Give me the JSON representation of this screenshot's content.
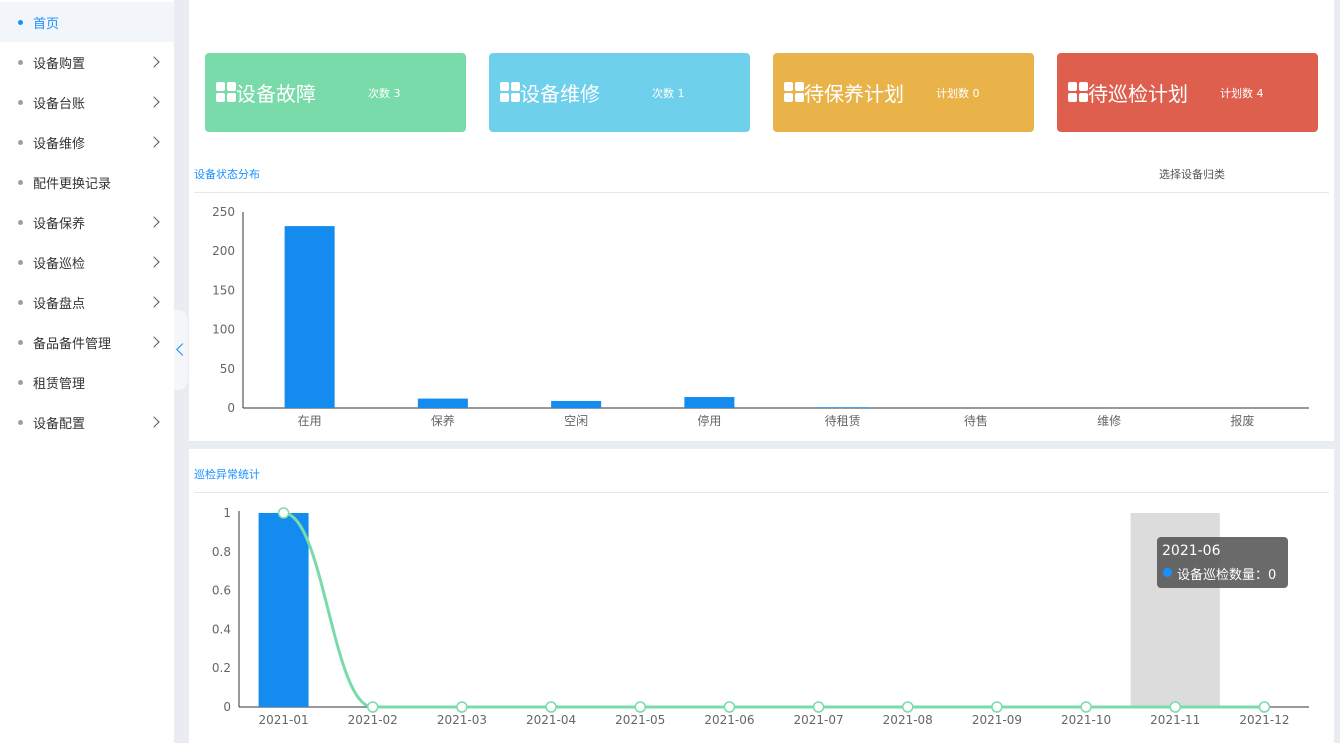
{
  "sidebar": {
    "items": [
      {
        "label": "首页",
        "active": true,
        "has_children": false
      },
      {
        "label": "设备购置",
        "active": false,
        "has_children": true
      },
      {
        "label": "设备台账",
        "active": false,
        "has_children": true
      },
      {
        "label": "设备维修",
        "active": false,
        "has_children": true
      },
      {
        "label": "配件更换记录",
        "active": false,
        "has_children": false
      },
      {
        "label": "设备保养",
        "active": false,
        "has_children": true
      },
      {
        "label": "设备巡检",
        "active": false,
        "has_children": true
      },
      {
        "label": "设备盘点",
        "active": false,
        "has_children": true
      },
      {
        "label": "备品备件管理",
        "active": false,
        "has_children": true
      },
      {
        "label": "租赁管理",
        "active": false,
        "has_children": false
      },
      {
        "label": "设备配置",
        "active": false,
        "has_children": true
      }
    ]
  },
  "cards": [
    {
      "title": "设备故障",
      "count": "次数 3",
      "color": "#79dba9",
      "icon": "grid-icon"
    },
    {
      "title": "设备维修",
      "count": "次数 1",
      "color": "#6fd0ec",
      "icon": "grid-icon"
    },
    {
      "title": "待保养计划",
      "count": "计划数 0",
      "color": "#e9b34a",
      "icon": "grid-icon"
    },
    {
      "title": "待巡检计划",
      "count": "计划数 4",
      "color": "#de5f4e",
      "icon": "grid-icon"
    }
  ],
  "status_section": {
    "title": "设备状态分布",
    "category_select": "选择设备归类"
  },
  "inspection_section": {
    "title": "巡检异常统计"
  },
  "tooltip": {
    "title": "2021-06",
    "series": "设备巡检数量",
    "value": "0",
    "text": "设备巡检数量：0"
  },
  "chart_data": [
    {
      "type": "bar",
      "categories": [
        "在用",
        "保养",
        "空闲",
        "停用",
        "待租赁",
        "待售",
        "维修",
        "报废"
      ],
      "values": [
        232,
        12,
        9,
        14,
        1,
        0,
        0,
        0
      ],
      "ylim": [
        0,
        250
      ],
      "yticks": [
        0,
        50,
        100,
        150,
        200,
        250
      ],
      "color": "#138bef",
      "grid": false
    },
    {
      "type": "bar+line",
      "categories": [
        "2021-01",
        "2021-02",
        "2021-03",
        "2021-04",
        "2021-05",
        "2021-06",
        "2021-07",
        "2021-08",
        "2021-09",
        "2021-10",
        "2021-11",
        "2021-12"
      ],
      "series": [
        {
          "values": [
            1,
            0,
            0,
            0,
            0,
            0,
            0,
            0,
            0,
            0,
            0,
            0
          ],
          "kind": "bar",
          "color": "#138bef"
        },
        {
          "values": [
            1,
            0,
            0,
            0,
            0,
            0,
            0,
            0,
            0,
            0,
            0,
            0
          ],
          "kind": "line",
          "smooth": true,
          "color": "#79dba9"
        }
      ],
      "ylim": [
        0,
        1
      ],
      "yticks": [
        "0",
        "0.2",
        "0.4",
        "0.6",
        "0.8",
        "1"
      ],
      "highlight_category": "2021-11",
      "grid": false
    }
  ]
}
